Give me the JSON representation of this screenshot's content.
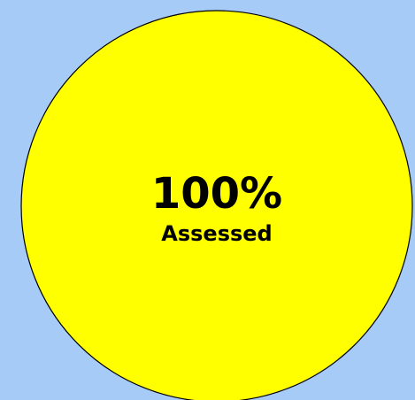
{
  "chart_data": {
    "type": "pie",
    "categories": [
      "Assessed"
    ],
    "values": [
      100
    ],
    "value_labels": [
      "100%"
    ],
    "colors": [
      "#ffff00"
    ]
  }
}
